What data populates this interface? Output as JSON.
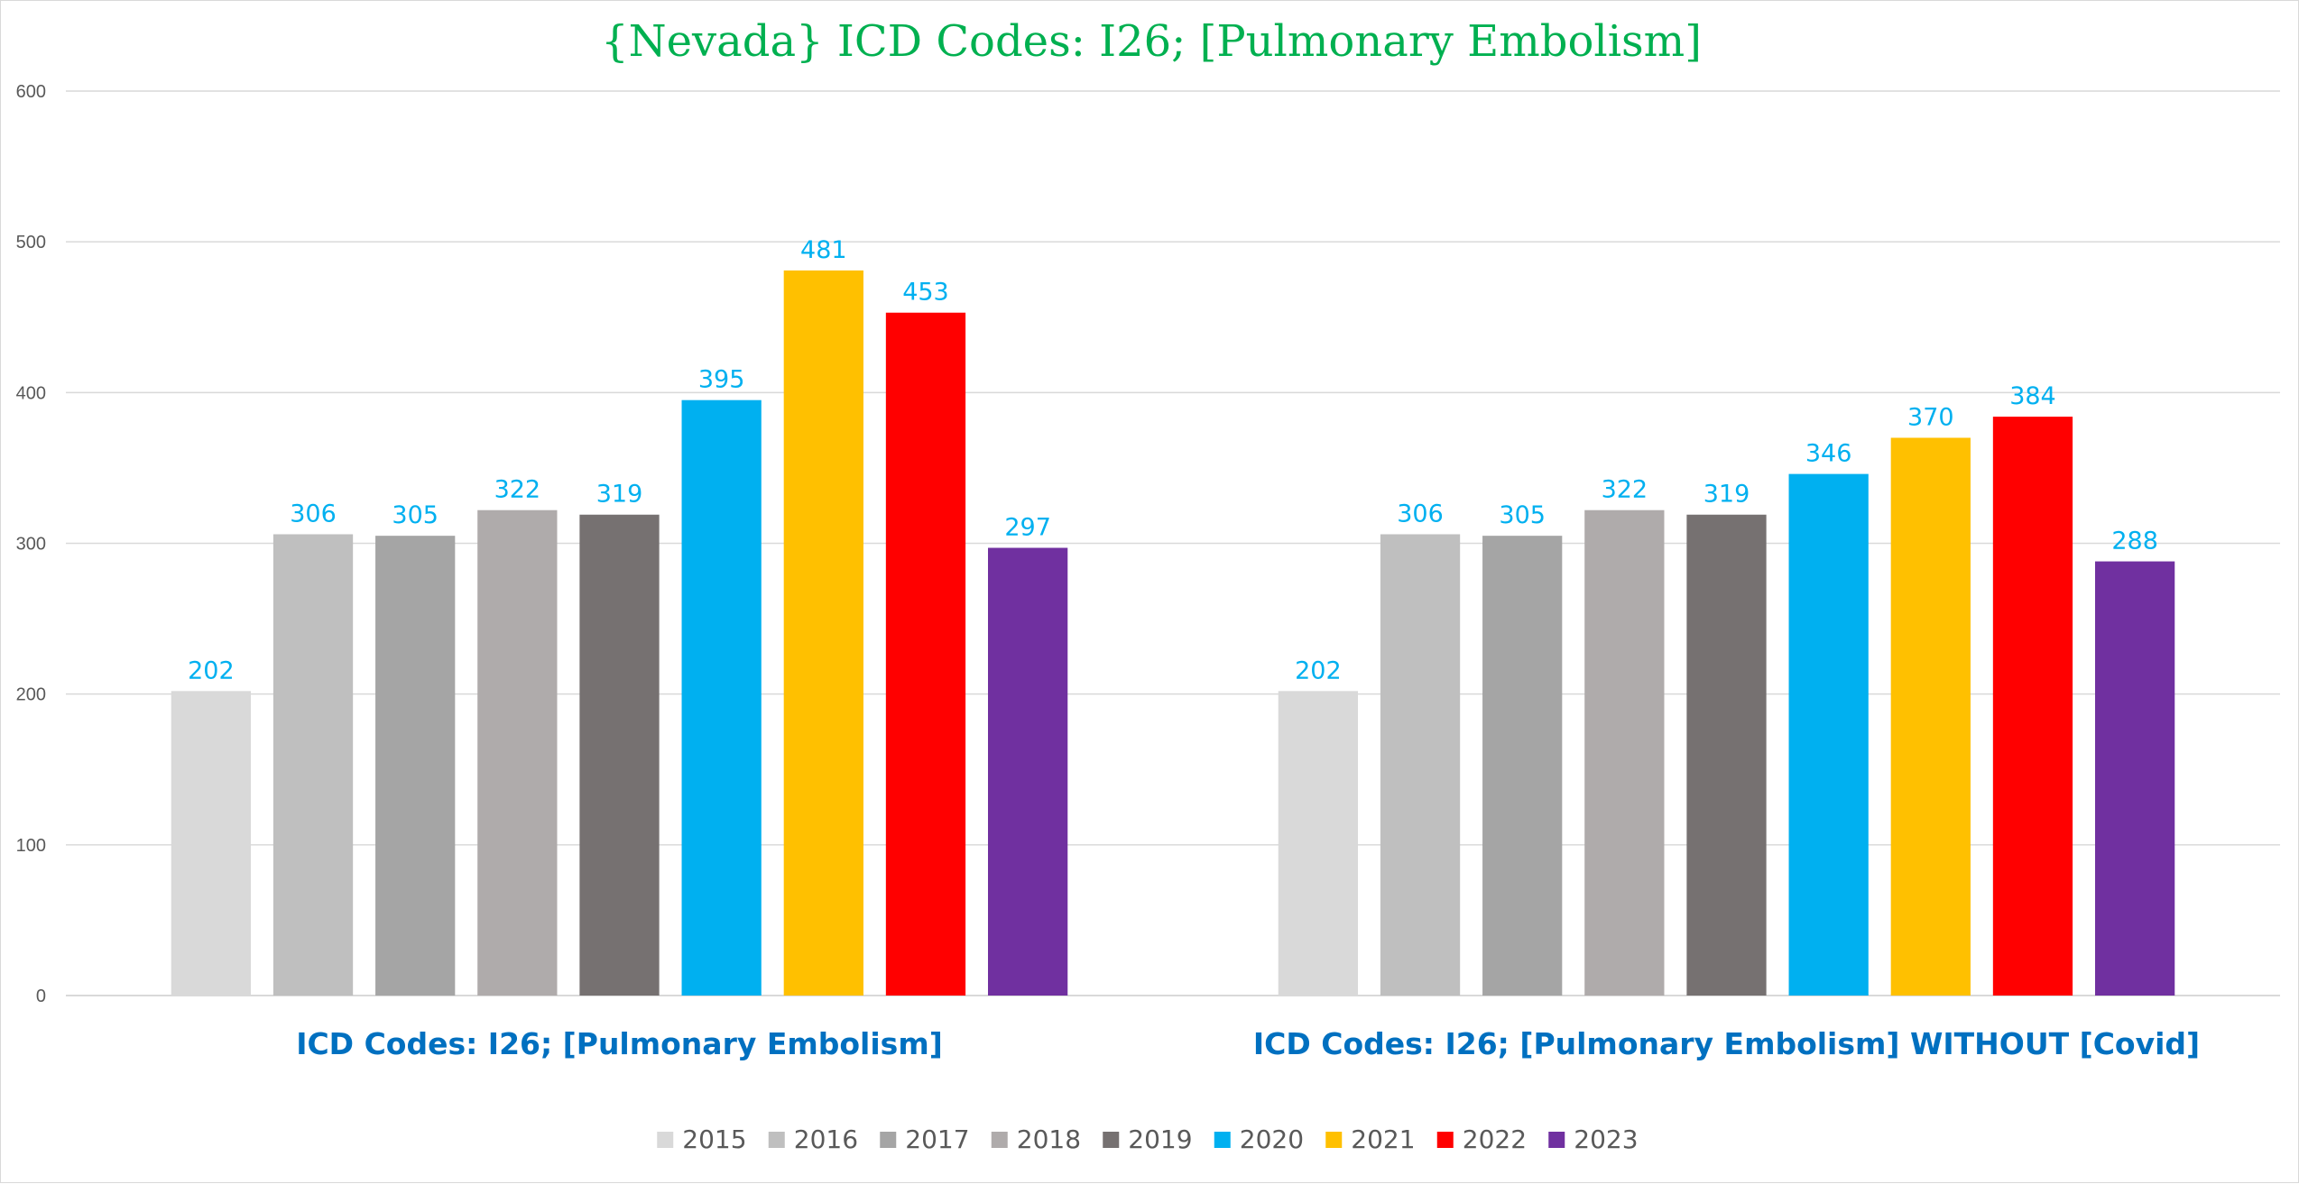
{
  "chart_data": {
    "type": "bar",
    "title": "{Nevada}   ICD Codes: I26;  [Pulmonary Embolism]",
    "categories": [
      "ICD Codes: I26;  [Pulmonary Embolism]",
      "ICD Codes: I26;  [Pulmonary Embolism]  WITHOUT  [Covid]"
    ],
    "series": [
      {
        "name": "2015",
        "color": "#d9d9d9",
        "values": [
          202,
          202
        ]
      },
      {
        "name": "2016",
        "color": "#bfbfbf",
        "values": [
          306,
          306
        ]
      },
      {
        "name": "2017",
        "color": "#a5a5a5",
        "values": [
          305,
          305
        ]
      },
      {
        "name": "2018",
        "color": "#afabab",
        "values": [
          322,
          322
        ]
      },
      {
        "name": "2019",
        "color": "#767171",
        "values": [
          319,
          319
        ]
      },
      {
        "name": "2020",
        "color": "#00b0f0",
        "values": [
          395,
          346
        ]
      },
      {
        "name": "2021",
        "color": "#ffc000",
        "values": [
          481,
          370
        ]
      },
      {
        "name": "2022",
        "color": "#ff0000",
        "values": [
          453,
          384
        ]
      },
      {
        "name": "2023",
        "color": "#7030a0",
        "values": [
          297,
          288
        ]
      }
    ],
    "yticks": [
      "0",
      "100",
      "200",
      "300",
      "400",
      "500",
      "600"
    ],
    "ylim": [
      0,
      600
    ],
    "xlabel": "",
    "ylabel": "",
    "grid": true,
    "legend_position": "bottom",
    "data_label_color": "#00b0f0",
    "title_color": "#00b050",
    "category_label_color": "#0070c0"
  }
}
